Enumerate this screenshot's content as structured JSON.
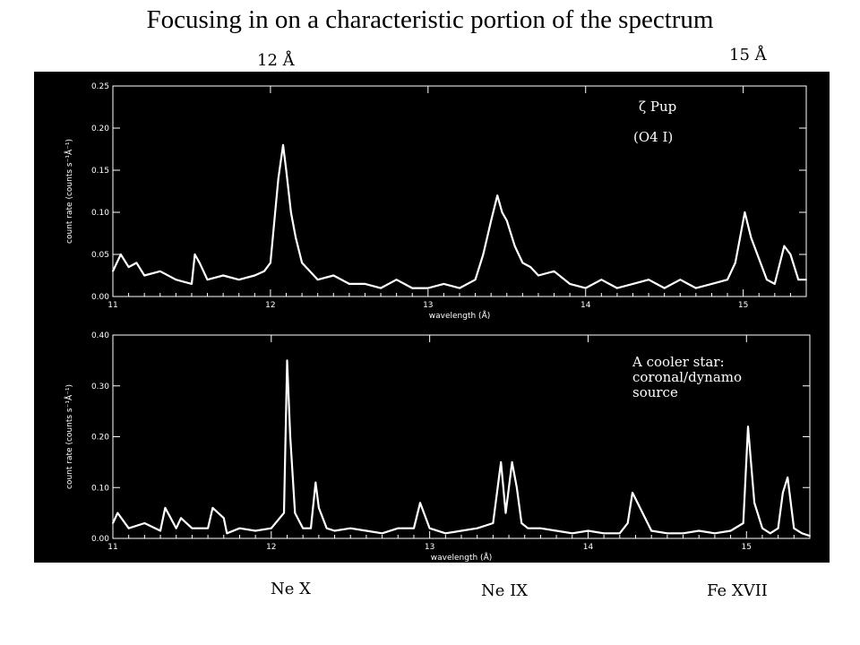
{
  "title": "Focusing in on a characteristic portion of the spectrum",
  "marker_12": "12 Å",
  "marker_15": "15 Å",
  "line_labels": {
    "ne_x": "Ne X",
    "ne_ix": "Ne IX",
    "fe_xvii": "Fe XVII"
  },
  "chart_data": [
    {
      "type": "line",
      "xlabel": "wavelength (Å)",
      "ylabel": "count rate (counts s⁻¹Å⁻¹)",
      "xlim": [
        11.0,
        15.4
      ],
      "ylim": [
        0,
        0.25
      ],
      "xticks": [
        11,
        12,
        13,
        14,
        15
      ],
      "yticks": [
        "0.00",
        "0.05",
        "0.10",
        "0.15",
        "0.20",
        "0.25"
      ],
      "annotation_line1": "ζ Pup",
      "annotation_line2": "(O4 I)",
      "line_color": "#ffffff",
      "background": "#000000",
      "series": [
        {
          "x": [
            11.0,
            11.05,
            11.1,
            11.15,
            11.2,
            11.3,
            11.4,
            11.5,
            11.52,
            11.55,
            11.6,
            11.7,
            11.8,
            11.9,
            11.96,
            12.0,
            12.02,
            12.05,
            12.08,
            12.1,
            12.13,
            12.16,
            12.2,
            12.25,
            12.3,
            12.4,
            12.5,
            12.6,
            12.7,
            12.8,
            12.9,
            13.0,
            13.1,
            13.2,
            13.3,
            13.35,
            13.4,
            13.44,
            13.47,
            13.5,
            13.55,
            13.6,
            13.65,
            13.7,
            13.8,
            13.9,
            14.0,
            14.1,
            14.2,
            14.3,
            14.4,
            14.5,
            14.6,
            14.7,
            14.8,
            14.9,
            14.95,
            15.01,
            15.05,
            15.1,
            15.15,
            15.2,
            15.26,
            15.3,
            15.35,
            15.4
          ],
          "y": [
            0.03,
            0.05,
            0.035,
            0.04,
            0.025,
            0.03,
            0.02,
            0.015,
            0.05,
            0.04,
            0.02,
            0.025,
            0.02,
            0.025,
            0.03,
            0.04,
            0.08,
            0.14,
            0.18,
            0.15,
            0.1,
            0.07,
            0.04,
            0.03,
            0.02,
            0.025,
            0.015,
            0.015,
            0.01,
            0.02,
            0.01,
            0.01,
            0.015,
            0.01,
            0.02,
            0.05,
            0.09,
            0.12,
            0.1,
            0.09,
            0.06,
            0.04,
            0.035,
            0.025,
            0.03,
            0.015,
            0.01,
            0.02,
            0.01,
            0.015,
            0.02,
            0.01,
            0.02,
            0.01,
            0.015,
            0.02,
            0.04,
            0.1,
            0.07,
            0.045,
            0.02,
            0.015,
            0.06,
            0.05,
            0.02,
            0.02
          ]
        }
      ]
    },
    {
      "type": "line",
      "xlabel": "wavelength (Å)",
      "ylabel": "count rate (counts s⁻¹Å⁻¹)",
      "xlim": [
        11.0,
        15.4
      ],
      "ylim": [
        0,
        0.4
      ],
      "xticks": [
        11,
        12,
        13,
        14,
        15
      ],
      "yticks": [
        "0.00",
        "0.10",
        "0.20",
        "0.30",
        "0.40"
      ],
      "annotation": "A cooler star:\ncoronal/dynamo\nsource",
      "line_color": "#ffffff",
      "background": "#000000",
      "series": [
        {
          "x": [
            11.0,
            11.03,
            11.1,
            11.2,
            11.3,
            11.33,
            11.4,
            11.43,
            11.5,
            11.6,
            11.63,
            11.7,
            11.72,
            11.8,
            11.9,
            12.0,
            12.08,
            12.1,
            12.12,
            12.15,
            12.2,
            12.25,
            12.28,
            12.3,
            12.35,
            12.4,
            12.5,
            12.6,
            12.7,
            12.8,
            12.9,
            12.94,
            13.0,
            13.1,
            13.2,
            13.3,
            13.4,
            13.45,
            13.48,
            13.52,
            13.55,
            13.58,
            13.62,
            13.7,
            13.8,
            13.9,
            14.0,
            14.1,
            14.2,
            14.25,
            14.28,
            14.4,
            14.5,
            14.6,
            14.7,
            14.8,
            14.9,
            14.98,
            15.01,
            15.05,
            15.1,
            15.15,
            15.2,
            15.23,
            15.26,
            15.3,
            15.35,
            15.4
          ],
          "y": [
            0.03,
            0.05,
            0.02,
            0.03,
            0.015,
            0.06,
            0.02,
            0.04,
            0.02,
            0.02,
            0.06,
            0.04,
            0.01,
            0.02,
            0.015,
            0.02,
            0.05,
            0.35,
            0.2,
            0.05,
            0.02,
            0.02,
            0.11,
            0.06,
            0.02,
            0.015,
            0.02,
            0.015,
            0.01,
            0.02,
            0.02,
            0.07,
            0.02,
            0.01,
            0.015,
            0.02,
            0.03,
            0.15,
            0.05,
            0.15,
            0.1,
            0.03,
            0.02,
            0.02,
            0.015,
            0.01,
            0.015,
            0.01,
            0.01,
            0.03,
            0.09,
            0.015,
            0.01,
            0.01,
            0.015,
            0.01,
            0.015,
            0.03,
            0.22,
            0.07,
            0.02,
            0.01,
            0.02,
            0.09,
            0.12,
            0.02,
            0.01,
            0.005
          ]
        }
      ]
    }
  ]
}
